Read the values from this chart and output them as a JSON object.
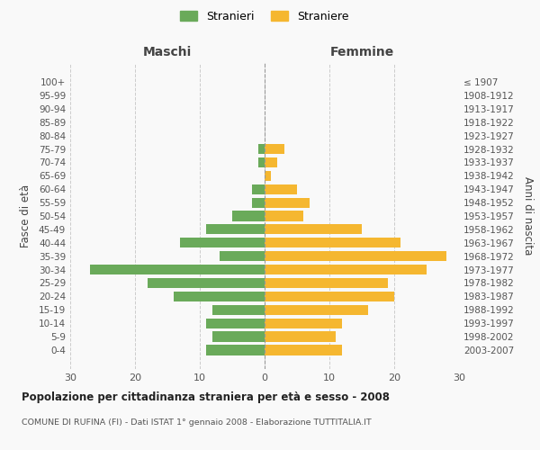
{
  "age_groups": [
    "100+",
    "95-99",
    "90-94",
    "85-89",
    "80-84",
    "75-79",
    "70-74",
    "65-69",
    "60-64",
    "55-59",
    "50-54",
    "45-49",
    "40-44",
    "35-39",
    "30-34",
    "25-29",
    "20-24",
    "15-19",
    "10-14",
    "5-9",
    "0-4"
  ],
  "birth_years": [
    "≤ 1907",
    "1908-1912",
    "1913-1917",
    "1918-1922",
    "1923-1927",
    "1928-1932",
    "1933-1937",
    "1938-1942",
    "1943-1947",
    "1948-1952",
    "1953-1957",
    "1958-1962",
    "1963-1967",
    "1968-1972",
    "1973-1977",
    "1978-1982",
    "1983-1987",
    "1988-1992",
    "1993-1997",
    "1998-2002",
    "2003-2007"
  ],
  "males": [
    0,
    0,
    0,
    0,
    0,
    1,
    1,
    0,
    2,
    2,
    5,
    9,
    13,
    7,
    27,
    18,
    14,
    8,
    9,
    8,
    9
  ],
  "females": [
    0,
    0,
    0,
    0,
    0,
    3,
    2,
    1,
    5,
    7,
    6,
    15,
    21,
    28,
    25,
    19,
    20,
    16,
    12,
    11,
    12
  ],
  "male_color": "#6aaa5a",
  "female_color": "#f5b730",
  "background_color": "#f9f9f9",
  "grid_color": "#cccccc",
  "title": "Popolazione per cittadinanza straniera per età e sesso - 2008",
  "subtitle": "COMUNE DI RUFINA (FI) - Dati ISTAT 1° gennaio 2008 - Elaborazione TUTTITALIA.IT",
  "xlabel_left": "Maschi",
  "xlabel_right": "Femmine",
  "ylabel_left": "Fasce di età",
  "ylabel_right": "Anni di nascita",
  "legend_male": "Stranieri",
  "legend_female": "Straniere",
  "xlim": 30
}
